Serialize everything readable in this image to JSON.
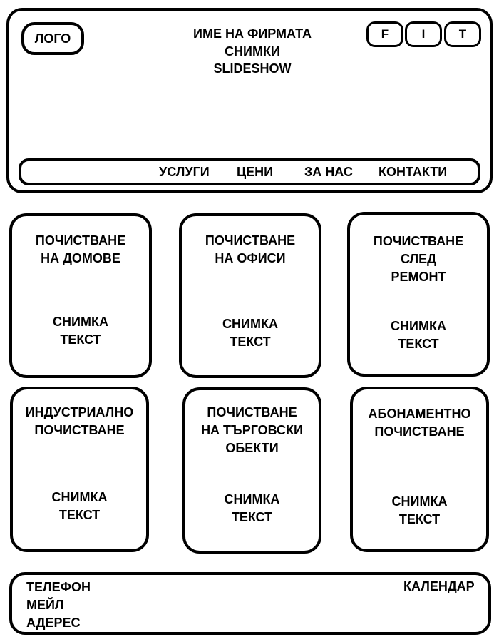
{
  "header": {
    "logo": "ЛОГО",
    "social": [
      "F",
      "I",
      "T"
    ],
    "titles": [
      "ИМЕ НА ФИРМАТА",
      "СНИМКИ",
      "SLIDESHOW"
    ]
  },
  "nav": [
    "УСЛУГИ",
    "ЦЕНИ",
    "ЗА НАС",
    "КОНТАКТИ"
  ],
  "cards": [
    {
      "title": "ПОЧИСТВАНЕ\nНА ДОМОВЕ",
      "body": "СНИМКА\nТЕКСТ"
    },
    {
      "title": "ПОЧИСТВАНЕ\nНА ОФИСИ",
      "body": "СНИМКА\nТЕКСТ"
    },
    {
      "title": "ПОЧИСТВАНЕ\nСЛЕД\nРЕМОНТ",
      "body": "СНИМКА\nТЕКСТ"
    },
    {
      "title": "ИНДУСТРИАЛНО\nПОЧИСТВАНЕ",
      "body": "СНИМКА\nТЕКСТ"
    },
    {
      "title": "ПОЧИСТВАНЕ\nНА ТЪРГОВСКИ\nОБЕКТИ",
      "body": "СНИМКА\nТЕКСТ"
    },
    {
      "title": "АБОНАМЕНТНО\nПОЧИСТВАНЕ",
      "body": "СНИМКА\nТЕКСТ"
    }
  ],
  "footer": {
    "phone": "ТЕЛЕФОН",
    "email": "МЕЙЛ",
    "address": "АДЕРЕС",
    "calendar": "КАЛЕНДАР"
  }
}
